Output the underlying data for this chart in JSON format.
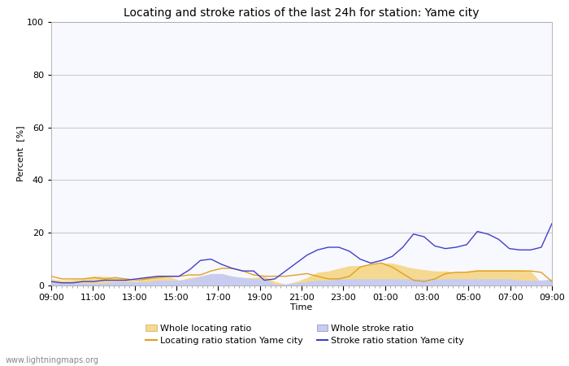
{
  "title": "Locating and stroke ratios of the last 24h for station: Yame city",
  "xlabel": "Time",
  "ylabel": "Percent  [%]",
  "ylim": [
    0,
    100
  ],
  "yticks": [
    0,
    20,
    40,
    60,
    80,
    100
  ],
  "x_labels": [
    "09:00",
    "11:00",
    "13:00",
    "15:00",
    "17:00",
    "19:00",
    "21:00",
    "23:00",
    "01:00",
    "03:00",
    "05:00",
    "07:00",
    "09:00"
  ],
  "watermark": "www.lightningmaps.org",
  "bg_color": "#ffffff",
  "plot_bg_color": "#f8f8ff",
  "grid_color": "#cccccc",
  "locating_ratio_whole": [
    2.5,
    2.0,
    2.2,
    2.5,
    3.5,
    3.5,
    3.0,
    2.5,
    1.5,
    3.5,
    3.5,
    3.5,
    2.0,
    3.0,
    3.5,
    4.5,
    4.5,
    3.5,
    3.0,
    3.0,
    3.5,
    1.5,
    0.5,
    1.5,
    3.0,
    5.0,
    5.5,
    6.5,
    7.5,
    7.5,
    8.0,
    8.5,
    8.5,
    7.5,
    6.5,
    6.0,
    5.5,
    5.5,
    5.0,
    5.5,
    6.0,
    6.0,
    6.0,
    6.0,
    6.0,
    5.5,
    1.0,
    1.0
  ],
  "locating_ratio_station": [
    3.5,
    2.5,
    2.5,
    2.5,
    3.0,
    2.5,
    3.0,
    2.5,
    2.0,
    2.5,
    3.0,
    3.5,
    3.5,
    4.0,
    4.0,
    5.5,
    6.5,
    6.5,
    5.5,
    4.0,
    3.5,
    3.5,
    3.5,
    4.0,
    4.5,
    3.5,
    2.5,
    2.5,
    3.5,
    7.0,
    8.0,
    8.5,
    7.0,
    4.5,
    2.0,
    1.5,
    2.5,
    4.5,
    5.0,
    5.0,
    5.5,
    5.5,
    5.5,
    5.5,
    5.5,
    5.5,
    5.0,
    1.5
  ],
  "stroke_ratio_whole": [
    1.5,
    1.0,
    1.0,
    1.0,
    1.0,
    1.0,
    1.5,
    1.5,
    1.5,
    1.5,
    2.0,
    2.0,
    2.0,
    2.5,
    3.5,
    4.5,
    4.5,
    3.5,
    3.0,
    2.5,
    2.5,
    0.5,
    0.5,
    1.0,
    1.5,
    2.0,
    2.0,
    2.5,
    2.5,
    2.5,
    2.5,
    2.5,
    2.5,
    2.5,
    2.5,
    2.5,
    2.5,
    2.5,
    2.5,
    2.5,
    2.5,
    2.5,
    2.5,
    2.5,
    2.0,
    2.0,
    2.0,
    2.5
  ],
  "stroke_ratio_station": [
    1.5,
    1.0,
    1.0,
    1.5,
    1.5,
    2.0,
    2.0,
    2.0,
    2.5,
    3.0,
    3.5,
    3.5,
    3.5,
    6.0,
    9.5,
    10.0,
    8.0,
    6.5,
    5.5,
    5.5,
    2.0,
    2.5,
    5.5,
    8.5,
    11.5,
    13.5,
    14.5,
    14.5,
    13.0,
    10.0,
    8.5,
    9.5,
    11.0,
    14.5,
    19.5,
    18.5,
    15.0,
    14.0,
    14.5,
    15.5,
    20.5,
    19.5,
    17.5,
    14.0,
    13.5,
    13.5,
    14.5,
    23.5
  ],
  "locating_whole_color": "#f5d990",
  "locating_station_color": "#e0a020",
  "stroke_whole_color": "#c8ccf0",
  "stroke_station_color": "#4040c8",
  "title_fontsize": 10,
  "axis_fontsize": 8,
  "tick_fontsize": 8
}
